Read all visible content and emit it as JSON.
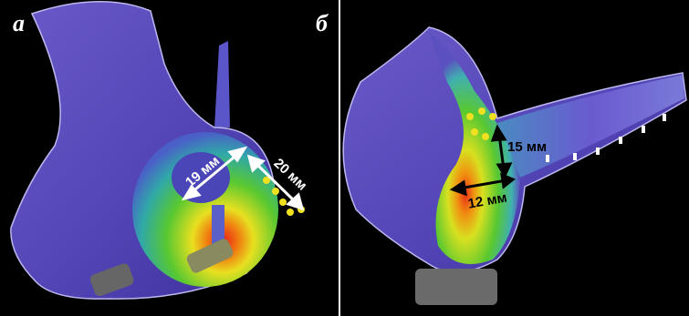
{
  "panels": [
    {
      "label": "а",
      "measurements": [
        "19 мм",
        "20 мм"
      ]
    },
    {
      "label": "б",
      "measurements": [
        "15 мм",
        "12 мм"
      ]
    }
  ]
}
